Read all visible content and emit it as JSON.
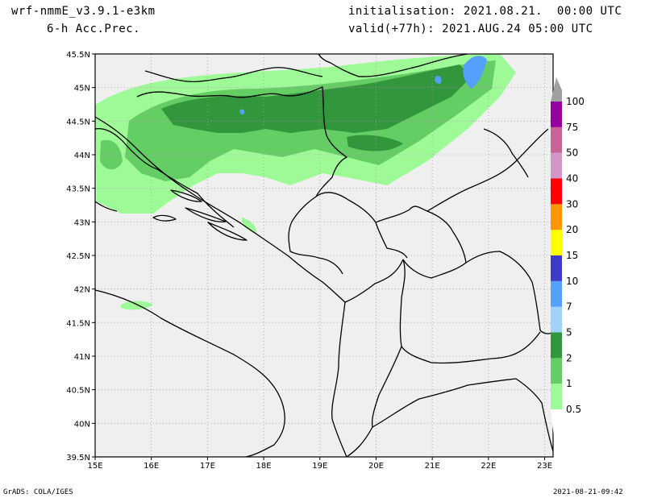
{
  "header": {
    "model": "wrf-nmmE_v3.9.1-e3km",
    "field": "6-h Acc.Prec.",
    "init": "initialisation: 2021.08.21.  00:00 UTC",
    "valid": "valid(+77h): 2021.AUG.24 05:00 UTC"
  },
  "footer": {
    "credit": "GrADS: COLA/IGES",
    "timestamp": "2021-08-21-09:42"
  },
  "map": {
    "lat_labels": [
      "45.5N",
      "45N",
      "44.5N",
      "44N",
      "43.5N",
      "43N",
      "42.5N",
      "42N",
      "41.5N",
      "41N",
      "40.5N",
      "40N",
      "39.5N"
    ],
    "lon_labels": [
      "15E",
      "16E",
      "17E",
      "18E",
      "19E",
      "20E",
      "21E",
      "22E",
      "23E"
    ],
    "colors": {
      "background": "#efefef",
      "coast": "#000000",
      "grid": "#a0a0a0"
    }
  },
  "colorbar": {
    "levels": [
      {
        "label": "0.5",
        "color": "#9efa96"
      },
      {
        "label": "1",
        "color": "#64cd64"
      },
      {
        "label": "2",
        "color": "#32963c"
      },
      {
        "label": "5",
        "color": "#a0d2fa"
      },
      {
        "label": "7",
        "color": "#55a0fa"
      },
      {
        "label": "10",
        "color": "#3c3cc8"
      },
      {
        "label": "15",
        "color": "#ffff00"
      },
      {
        "label": "20",
        "color": "#ff9600"
      },
      {
        "label": "30",
        "color": "#ff0000"
      },
      {
        "label": "40",
        "color": "#d296c8"
      },
      {
        "label": "50",
        "color": "#c86496"
      },
      {
        "label": "75",
        "color": "#9600a0"
      },
      {
        "label": "100",
        "color": "#a0a0a0"
      }
    ]
  }
}
